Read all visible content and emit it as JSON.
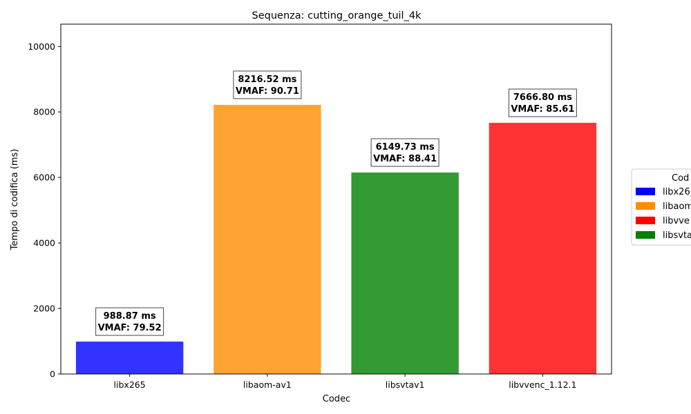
{
  "chart_data": {
    "type": "bar",
    "title": "Sequenza: cutting_orange_tuil_4k",
    "xlabel": "Codec",
    "ylabel": "Tempo di codifica (ms)",
    "ylim": [
      0,
      10680
    ],
    "yticks": [
      0,
      2000,
      4000,
      6000,
      8000,
      10000
    ],
    "categories": [
      "libx265",
      "libaom-av1",
      "libsvtav1",
      "libvvenc_1.12.1"
    ],
    "values": [
      988.87,
      8216.52,
      6149.73,
      7666.8
    ],
    "colors": [
      "#3333ff",
      "#ffa333",
      "#339933",
      "#ff3333"
    ],
    "data_labels": [
      [
        "988.87 ms",
        "VMAF: 79.52"
      ],
      [
        "8216.52 ms",
        "VMAF: 90.71"
      ],
      [
        "6149.73 ms",
        "VMAF: 88.41"
      ],
      [
        "7666.80 ms",
        "VMAF: 85.61"
      ]
    ],
    "legend": {
      "title": "Cod",
      "placement": "right",
      "entries": [
        {
          "label": "libx26",
          "color": "#0000ff"
        },
        {
          "label": "libaom",
          "color": "#ff8c00"
        },
        {
          "label": "libvve",
          "color": "#ff0000"
        },
        {
          "label": "libsvta",
          "color": "#008000"
        }
      ]
    },
    "grid": false
  }
}
